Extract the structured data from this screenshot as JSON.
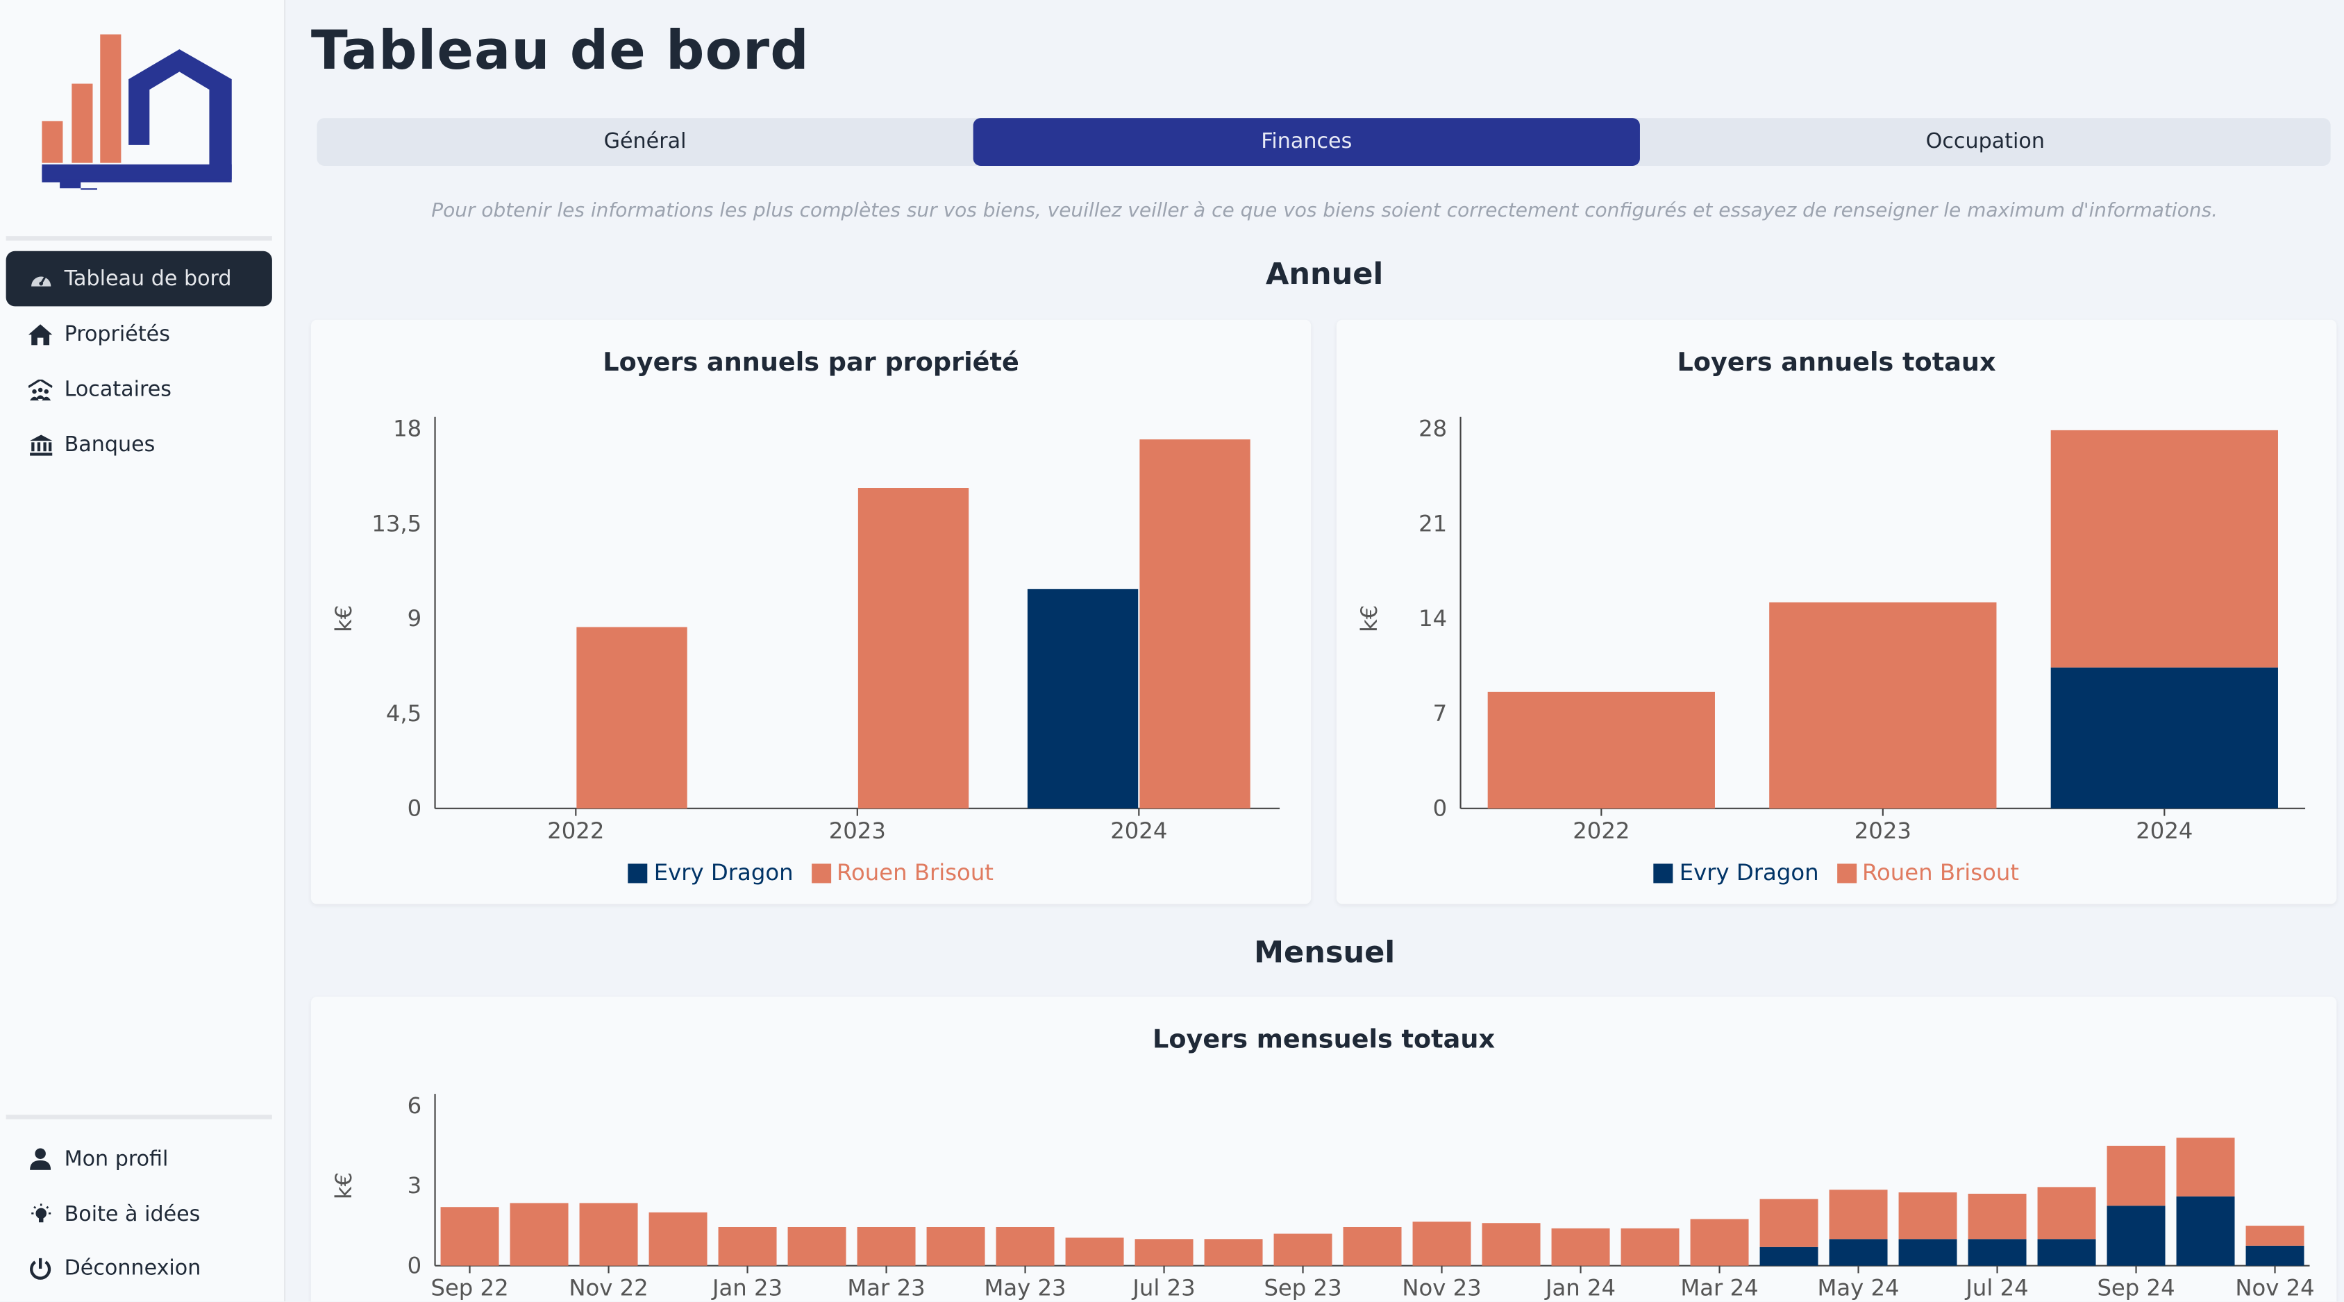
{
  "colors": {
    "evry": "#003366",
    "rouen": "#e07b60",
    "accent": "#283593",
    "sidebar_active": "#1f2937"
  },
  "sidebar": {
    "items": [
      {
        "label": "Tableau de bord",
        "icon": "dashboard-gauge-icon",
        "active": true
      },
      {
        "label": "Propriétés",
        "icon": "home-icon"
      },
      {
        "label": "Locataires",
        "icon": "tenants-icon"
      },
      {
        "label": "Banques",
        "icon": "bank-icon"
      }
    ],
    "bottom_items": [
      {
        "label": "Mon profil",
        "icon": "user-icon"
      },
      {
        "label": "Boite à idées",
        "icon": "lightbulb-icon"
      },
      {
        "label": "Déconnexion",
        "icon": "power-icon"
      }
    ]
  },
  "header": {
    "title": "Tableau de bord"
  },
  "tabs": [
    {
      "label": "Général"
    },
    {
      "label": "Finances",
      "active": true
    },
    {
      "label": "Occupation"
    }
  ],
  "notice": "Pour obtenir les informations les plus complètes sur vos biens, veuillez veiller à ce que vos biens soient correctement configurés et essayez de renseigner le maximum d'informations.",
  "sections": {
    "annual": "Annuel",
    "monthly": "Mensuel"
  },
  "chart_data": [
    {
      "type": "bar",
      "mode": "grouped",
      "title": "Loyers annuels par propriété",
      "ylabel": "k€",
      "xlabel": "",
      "categories": [
        "2022",
        "2023",
        "2024"
      ],
      "series": [
        {
          "name": "Evry Dragon",
          "values": [
            0,
            0,
            10.4
          ]
        },
        {
          "name": "Rouen Brisout",
          "values": [
            8.6,
            15.2,
            17.5
          ]
        }
      ],
      "ylim": [
        0,
        18
      ],
      "yticks": [
        0,
        4.5,
        9,
        13.5,
        18
      ],
      "ytick_labels": [
        "0",
        "4,5",
        "9",
        "13,5",
        "18"
      ],
      "legend": "bottom",
      "grid": false
    },
    {
      "type": "bar",
      "mode": "stacked",
      "title": "Loyers annuels totaux",
      "ylabel": "k€",
      "xlabel": "",
      "categories": [
        "2022",
        "2023",
        "2024"
      ],
      "series": [
        {
          "name": "Evry Dragon",
          "values": [
            0,
            0,
            10.4
          ]
        },
        {
          "name": "Rouen Brisout",
          "values": [
            8.6,
            15.2,
            17.5
          ]
        }
      ],
      "ylim": [
        0,
        28
      ],
      "yticks": [
        0,
        7,
        14,
        21,
        28
      ],
      "ytick_labels": [
        "0",
        "7",
        "14",
        "21",
        "28"
      ],
      "legend": "bottom",
      "grid": false
    },
    {
      "type": "bar",
      "mode": "stacked",
      "title": "Loyers mensuels totaux",
      "ylabel": "k€",
      "xlabel": "",
      "categories": [
        "Sep 22",
        "Oct 22",
        "Nov 22",
        "Dec 22",
        "Jan 23",
        "Feb 23",
        "Mar 23",
        "Apr 23",
        "May 23",
        "Jun 23",
        "Jul 23",
        "Aug 23",
        "Sep 23",
        "Oct 23",
        "Nov 23",
        "Dec 23",
        "Jan 24",
        "Feb 24",
        "Mar 24",
        "Apr 24",
        "May 24",
        "Jun 24",
        "Jul 24",
        "Aug 24",
        "Sep 24",
        "Oct 24",
        "Nov 24"
      ],
      "xtick_labels": [
        "Sep 22",
        "Nov 22",
        "Jan 23",
        "Mar 23",
        "May 23",
        "Jul 23",
        "Sep 23",
        "Nov 23",
        "Jan 24",
        "Mar 24",
        "May 24",
        "Jul 24",
        "Sep 24",
        "Nov 24"
      ],
      "series": [
        {
          "name": "Evry Dragon",
          "values": [
            0,
            0,
            0,
            0,
            0,
            0,
            0,
            0,
            0,
            0,
            0,
            0,
            0,
            0,
            0,
            0,
            0,
            0,
            0,
            0.7,
            1.0,
            1.0,
            1.0,
            1.0,
            2.25,
            2.6,
            0.75
          ]
        },
        {
          "name": "Rouen Brisout",
          "values": [
            2.2,
            2.35,
            2.35,
            2.0,
            1.45,
            1.45,
            1.45,
            1.45,
            1.45,
            1.05,
            1.0,
            1.0,
            1.2,
            1.45,
            1.65,
            1.6,
            1.4,
            1.4,
            1.75,
            1.8,
            1.85,
            1.75,
            1.7,
            1.95,
            2.25,
            2.2,
            0.75
          ]
        }
      ],
      "ylim": [
        0,
        6
      ],
      "yticks": [
        0,
        3,
        6
      ],
      "ytick_labels": [
        "0",
        "3",
        "6"
      ],
      "grid": false
    }
  ]
}
